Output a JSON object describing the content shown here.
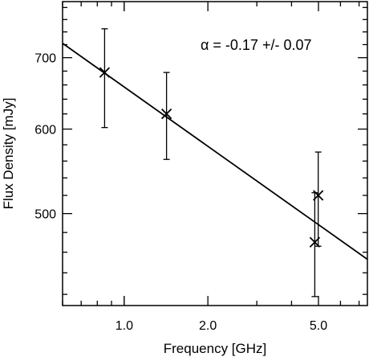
{
  "chart_data": {
    "type": "scatter",
    "xlabel": "Frequency [GHz]",
    "ylabel": "Flux Density [mJy]",
    "x_scale": "log",
    "y_scale": "log",
    "xlim": [
      0.6,
      7.5
    ],
    "ylim": [
      410,
      790
    ],
    "x_ticks": [
      {
        "value": 1.0,
        "label": "1.0"
      },
      {
        "value": 2.0,
        "label": "2.0"
      },
      {
        "value": 5.0,
        "label": "5.0"
      }
    ],
    "y_ticks": [
      {
        "value": 500,
        "label": "500"
      },
      {
        "value": 600,
        "label": "600"
      },
      {
        "value": 700,
        "label": "700"
      }
    ],
    "points": [
      {
        "x": 0.85,
        "y": 678,
        "yerr_low": 602,
        "yerr_high": 745
      },
      {
        "x": 1.42,
        "y": 620,
        "yerr_low": 562,
        "yerr_high": 678
      },
      {
        "x": 4.85,
        "y": 470,
        "yerr_low": 418,
        "yerr_high": 523
      },
      {
        "x": 4.99,
        "y": 520,
        "yerr_low": 466,
        "yerr_high": 571
      }
    ],
    "fit_line": {
      "x": [
        0.6,
        7.5
      ],
      "y": [
        722,
        453
      ]
    },
    "annotation": "α = -0.17 +/- 0.07",
    "grid": false
  }
}
